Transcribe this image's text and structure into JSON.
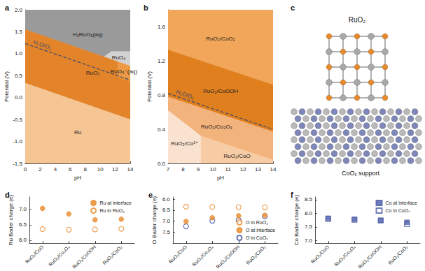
{
  "chart_data": [
    {
      "type": "pourbaix",
      "title": "a",
      "x_label": "pH",
      "y_label": "Potential (V)",
      "xlim": [
        0,
        14
      ],
      "ylim": [
        -1.5,
        2.0
      ],
      "xticks": [
        0,
        2,
        4,
        6,
        8,
        10,
        12,
        14
      ],
      "yticks": [
        -1.5,
        {
          "value": -1.0,
          "label": "-1.0"
        },
        -0.5,
        {
          "value": 0,
          "label": "0.0"
        },
        0.5,
        {
          "value": 1.0,
          "label": "1.0"
        },
        1.5,
        {
          "value": 2.0,
          "label": "2.0"
        }
      ],
      "grid": false,
      "regions": [
        {
          "name": "H₂RuO₅(aq)",
          "color": "#9a9a9a",
          "polygon": [
            [
              0,
              2.0
            ],
            [
              14,
              2.0
            ],
            [
              14,
              1.05
            ],
            [
              11.5,
              1.05
            ],
            [
              10.5,
              0.93
            ],
            [
              0,
              1.55
            ]
          ]
        },
        {
          "name": "RuO₄",
          "color": "#d2d2d2",
          "polygon": [
            [
              10.5,
              0.93
            ],
            [
              11.5,
              1.05
            ],
            [
              14,
              1.05
            ],
            [
              14,
              0.72
            ],
            [
              12.3,
              0.82
            ]
          ]
        },
        {
          "name": "RuO₄⁻(aq)",
          "color": "#ec9a45",
          "polygon": [
            [
              12.3,
              0.82
            ],
            [
              14,
              0.72
            ],
            [
              14,
              0.36
            ],
            [
              12.3,
              0.48
            ]
          ]
        },
        {
          "name": "RuO₂",
          "color": "#e3842a",
          "polygon": [
            [
              0,
              1.55
            ],
            [
              10.5,
              0.93
            ],
            [
              12.3,
              0.82
            ],
            [
              12.3,
              0.48
            ],
            [
              14,
              0.36
            ],
            [
              14,
              -0.5
            ],
            [
              0,
              0.33
            ]
          ]
        },
        {
          "name": "Ru",
          "color": "#f5c594",
          "polygon": [
            [
              0,
              0.33
            ],
            [
              14,
              -0.5
            ],
            [
              14,
              -1.5
            ],
            [
              0,
              -1.5
            ]
          ]
        }
      ],
      "lines": [
        {
          "name": "H₂O/O₂",
          "color": "#3d4a6b",
          "line_style": "dashed",
          "x": [
            0,
            14
          ],
          "values": [
            1.23,
            0.4
          ]
        }
      ]
    },
    {
      "type": "pourbaix",
      "title": "b",
      "x_label": "pH",
      "y_label": "Potential (V)",
      "xlim": [
        7,
        14
      ],
      "ylim": [
        0,
        1.8
      ],
      "xticks": [
        7,
        8,
        9,
        10,
        11,
        12,
        13,
        14
      ],
      "yticks": [
        {
          "value": 0,
          "label": "0.0"
        },
        0.4,
        0.8,
        1.2,
        1.6
      ],
      "grid": false,
      "regions": [
        {
          "name": "RuO₂/CoO₂",
          "color": "#f2a65a",
          "polygon": [
            [
              7,
              1.8
            ],
            [
              14,
              1.8
            ],
            [
              14,
              0.92
            ],
            [
              7,
              1.33
            ]
          ]
        },
        {
          "name": "RuO₂/CoOOH",
          "color": "#e07f1e",
          "polygon": [
            [
              7,
              1.33
            ],
            [
              14,
              0.92
            ],
            [
              14,
              0.37
            ],
            [
              7,
              0.78
            ]
          ]
        },
        {
          "name": "RuO₂/Co₃O₄",
          "color": "#f3b37c",
          "polygon": [
            [
              7,
              0.78
            ],
            [
              14,
              0.37
            ],
            [
              14,
              0.04
            ],
            [
              9.2,
              0.32
            ],
            [
              7,
              0.62
            ]
          ]
        },
        {
          "name": "RuO₂/Co²⁺",
          "color": "#f9e2cf",
          "polygon": [
            [
              7,
              0.62
            ],
            [
              9.2,
              0.32
            ],
            [
              9.2,
              0
            ],
            [
              7,
              0
            ]
          ]
        },
        {
          "name": "RuO₂/CoO",
          "color": "#f7cca4",
          "polygon": [
            [
              9.2,
              0.32
            ],
            [
              14,
              0.04
            ],
            [
              14,
              0
            ],
            [
              9.2,
              0
            ]
          ]
        }
      ],
      "lines": [
        {
          "name": "H₂O/O₂",
          "color": "#3d4a6b",
          "line_style": "dashed",
          "x": [
            7,
            14
          ],
          "values": [
            0.82,
            0.4
          ]
        }
      ]
    },
    {
      "type": "scatter",
      "title": "d",
      "y_label": "Ru Bader charge (e)",
      "categories": [
        "RuO₂/CoO",
        "RuO₂/Co₃O₄",
        "RuO₂/CoOOH",
        "RuO₂/CoO₂"
      ],
      "ylim": [
        5.9,
        7.4
      ],
      "yticks": [
        {
          "value": 6.0,
          "label": "6.0"
        },
        6.5,
        {
          "value": 7.0,
          "label": "7.0"
        }
      ],
      "grid": false,
      "legend": "upper right",
      "series": [
        {
          "name": "Ru at interface",
          "color": "#e8892b",
          "marker": "circle",
          "values": [
            7.03,
            6.85,
            6.66,
            6.68
          ]
        },
        {
          "name": "Ru in RuO₂",
          "color": "#e8892b",
          "marker": "circle-open",
          "values": [
            6.36,
            6.34,
            6.35,
            6.37
          ]
        }
      ]
    },
    {
      "type": "scatter",
      "title": "e",
      "y_label": "O Bader charge (e)",
      "categories": [
        "RuO₂/CoO",
        "RuO₂/Co₃O₄",
        "RuO₂/CoOOH",
        "RuO₂/CoO₂"
      ],
      "ylim": [
        8.0,
        5.9
      ],
      "yticks": [
        {
          "value": 6.0,
          "label": "6.0"
        },
        6.5,
        {
          "value": 7.0,
          "label": "7.0"
        },
        7.5
      ],
      "grid": false,
      "legend": "lower right",
      "series": [
        {
          "name": "O in RuO₂",
          "color": "#e8892b",
          "marker": "circle-open",
          "values": [
            6.34,
            6.35,
            6.36,
            6.37
          ]
        },
        {
          "name": "O at interface",
          "color": "#e8892b",
          "marker": "circle",
          "values": [
            7.01,
            6.84,
            6.75,
            6.73
          ]
        },
        {
          "name": "O in CoOₓ",
          "color": "#3b4fa0",
          "marker": "circle-open",
          "values": [
            7.23,
            6.98,
            6.95,
            6.78
          ]
        }
      ]
    },
    {
      "type": "scatter",
      "title": "f",
      "y_label": "Co Bader charge (e)",
      "categories": [
        "RuO₂/CoO",
        "RuO₂/Co₃O₄",
        "RuO₂/CoOOH",
        "RuO₂/CoO₂"
      ],
      "ylim": [
        6.9,
        8.6
      ],
      "yticks": [
        {
          "value": 7.0,
          "label": "7.0"
        },
        7.5,
        {
          "value": 8.0,
          "label": "8.0"
        },
        8.5
      ],
      "grid": false,
      "legend": "upper right",
      "series": [
        {
          "name": "Co at interface",
          "color": "#4a5aa8",
          "marker": "square",
          "values": [
            7.82,
            7.78,
            7.74,
            7.67
          ]
        },
        {
          "name": "Co in CoOₓ",
          "color": "#4a5aa8",
          "marker": "square-open",
          "values": [
            7.78,
            7.76,
            7.74,
            7.6
          ]
        }
      ]
    }
  ],
  "structure": {
    "label": "c",
    "cluster_label": "RuO₂",
    "support_label": "CoOₓ support"
  }
}
